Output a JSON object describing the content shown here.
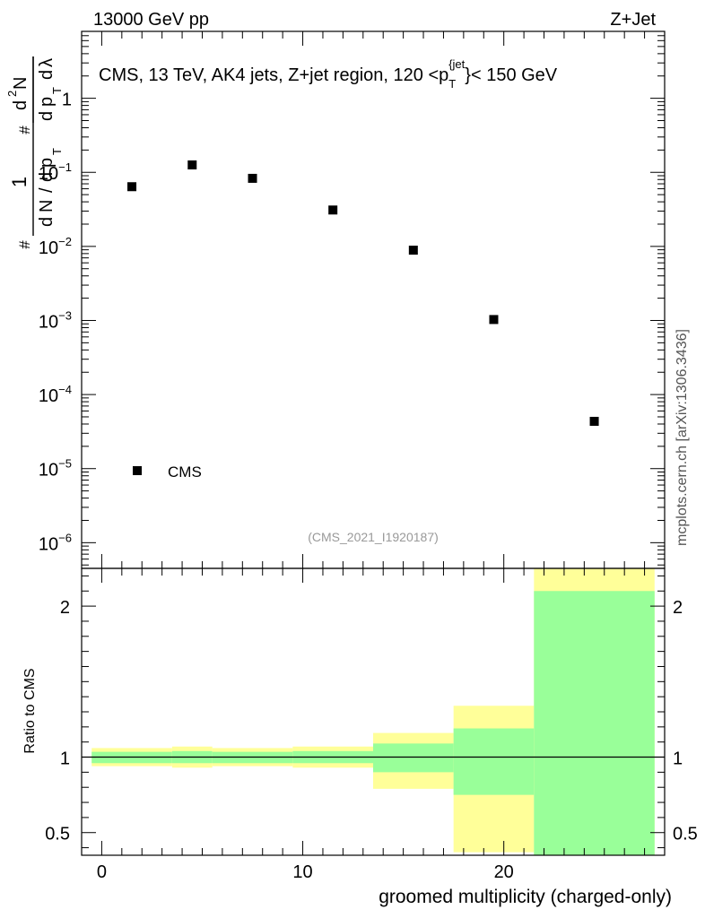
{
  "header": {
    "left_label": "13000 GeV pp",
    "right_label": "Z+Jet"
  },
  "side_label": "mcplots.cern.ch [arXiv:1306.3436]",
  "colors": {
    "band_outer": "#ffff99",
    "band_inner": "#99ff99",
    "marker": "#000000",
    "watermark": "#999999"
  },
  "chart_data": [
    {
      "id": "main-panel",
      "type": "scatter",
      "title": "CMS, 13 TeV, AK4 jets, Z+jet region, 120 <p_T^{jet}< 150 GeV",
      "title_parts": {
        "before": "CMS, 13 TeV, AK4 jets, Z+jet region, 120 <p",
        "sub": "T",
        "sup": "{jet",
        "after": "}< 150 GeV"
      },
      "ylabel": "1/(dN/dp_T) d²N/(dp_T dλ)",
      "ylabel_parts": {
        "hash": "#",
        "one": "1",
        "d": "d",
        "N": "N",
        "slash": "/",
        "p": "p",
        "T": "T",
        "d2": "d",
        "two": "2",
        "lambda": "λ"
      },
      "yscale": "log",
      "ylim": [
        4.5e-07,
        8.0
      ],
      "xlim": [
        -1,
        28
      ],
      "y_ticks": [
        {
          "value": 1e-06,
          "base": "10",
          "exp": "−6"
        },
        {
          "value": 1e-05,
          "base": "10",
          "exp": "−5"
        },
        {
          "value": 0.0001,
          "base": "10",
          "exp": "−4"
        },
        {
          "value": 0.001,
          "base": "10",
          "exp": "−3"
        },
        {
          "value": 0.01,
          "base": "10",
          "exp": "−2"
        },
        {
          "value": 0.1,
          "base": "10",
          "exp": "−1"
        },
        {
          "value": 1,
          "base": "1",
          "exp": ""
        }
      ],
      "series": [
        {
          "name": "CMS",
          "x": [
            1.5,
            4.5,
            7.5,
            11.5,
            15.5,
            19.5,
            24.5
          ],
          "y": [
            0.064,
            0.126,
            0.083,
            0.031,
            0.0089,
            0.00103,
            4.35e-05
          ]
        }
      ],
      "legend": {
        "label": "CMS",
        "position": "bottom-left"
      },
      "watermark": "(CMS_2021_I1920187)"
    },
    {
      "id": "ratio-panel",
      "type": "area",
      "ylabel": "Ratio to CMS",
      "xlabel": "groomed multiplicity (charged-only)",
      "xlim": [
        -1,
        28
      ],
      "ylim": [
        0.35,
        2.25
      ],
      "x_ticks": [
        {
          "value": 0,
          "label": "0"
        },
        {
          "value": 10,
          "label": "10"
        },
        {
          "value": 20,
          "label": "20"
        }
      ],
      "y_ticks": [
        {
          "value": 0.5,
          "label": "0.5"
        },
        {
          "value": 1,
          "label": "1"
        },
        {
          "value": 2,
          "label": "2"
        }
      ],
      "reference_line": 1,
      "bins": [
        {
          "lo": -0.5,
          "hi": 3.5,
          "outer": [
            0.94,
            1.06
          ],
          "inner": [
            0.96,
            1.035
          ]
        },
        {
          "lo": 3.5,
          "hi": 5.5,
          "outer": [
            0.93,
            1.07
          ],
          "inner": [
            0.96,
            1.04
          ]
        },
        {
          "lo": 5.5,
          "hi": 9.5,
          "outer": [
            0.94,
            1.06
          ],
          "inner": [
            0.96,
            1.035
          ]
        },
        {
          "lo": 9.5,
          "hi": 13.5,
          "outer": [
            0.93,
            1.07
          ],
          "inner": [
            0.96,
            1.04
          ]
        },
        {
          "lo": 13.5,
          "hi": 17.5,
          "outer": [
            0.79,
            1.16
          ],
          "inner": [
            0.9,
            1.09
          ]
        },
        {
          "lo": 17.5,
          "hi": 21.5,
          "outer": [
            0.37,
            1.34
          ],
          "inner": [
            0.75,
            1.19
          ]
        },
        {
          "lo": 21.5,
          "hi": 27.5,
          "outer": [
            0.35,
            2.25
          ],
          "inner": [
            0.35,
            2.1
          ]
        }
      ]
    }
  ]
}
